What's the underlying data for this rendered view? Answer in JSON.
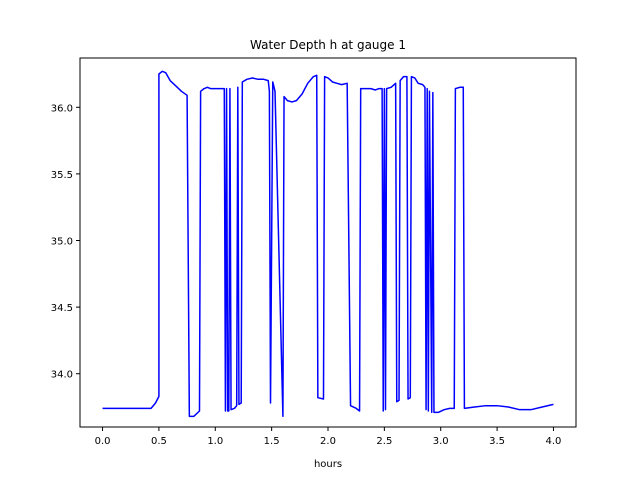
{
  "chart_data": {
    "type": "line",
    "title": "Water Depth h at gauge 1",
    "xlabel": "hours",
    "ylabel": "",
    "xlim": [
      -0.2,
      4.2
    ],
    "ylim": [
      33.6,
      36.37
    ],
    "xticks": [
      0.0,
      0.5,
      1.0,
      1.5,
      2.0,
      2.5,
      3.0,
      3.5,
      4.0
    ],
    "xtick_labels": [
      "0.0",
      "0.5",
      "1.0",
      "1.5",
      "2.0",
      "2.5",
      "3.0",
      "3.5",
      "4.0"
    ],
    "yticks": [
      34.0,
      34.5,
      35.0,
      35.5,
      36.0
    ],
    "ytick_labels": [
      "34.0",
      "34.5",
      "35.0",
      "35.5",
      "36.0"
    ],
    "grid": false,
    "legend": "none",
    "color": "#0000ff",
    "series": [
      {
        "points": [
          [
            0.0,
            33.74
          ],
          [
            0.2,
            33.74
          ],
          [
            0.4,
            33.74
          ],
          [
            0.43,
            33.74
          ],
          [
            0.47,
            33.78
          ],
          [
            0.5,
            33.83
          ],
          [
            0.5,
            36.25
          ],
          [
            0.53,
            36.27
          ],
          [
            0.56,
            36.26
          ],
          [
            0.6,
            36.2
          ],
          [
            0.65,
            36.16
          ],
          [
            0.7,
            36.12
          ],
          [
            0.75,
            36.09
          ],
          [
            0.77,
            33.68
          ],
          [
            0.81,
            33.68
          ],
          [
            0.86,
            33.72
          ],
          [
            0.87,
            36.12
          ],
          [
            0.9,
            36.14
          ],
          [
            0.93,
            36.15
          ],
          [
            0.96,
            36.14
          ],
          [
            1.0,
            36.14
          ],
          [
            1.03,
            36.14
          ],
          [
            1.08,
            36.14
          ],
          [
            1.09,
            33.72
          ],
          [
            1.1,
            36.14
          ],
          [
            1.11,
            33.72
          ],
          [
            1.12,
            33.72
          ],
          [
            1.13,
            36.14
          ],
          [
            1.14,
            33.73
          ],
          [
            1.17,
            33.74
          ],
          [
            1.19,
            33.76
          ],
          [
            1.2,
            36.15
          ],
          [
            1.21,
            33.77
          ],
          [
            1.23,
            33.78
          ],
          [
            1.24,
            36.19
          ],
          [
            1.28,
            36.21
          ],
          [
            1.33,
            36.22
          ],
          [
            1.38,
            36.21
          ],
          [
            1.43,
            36.21
          ],
          [
            1.47,
            36.2
          ],
          [
            1.48,
            36.12
          ],
          [
            1.49,
            33.78
          ],
          [
            1.51,
            36.19
          ],
          [
            1.53,
            36.12
          ],
          [
            1.6,
            33.68
          ],
          [
            1.61,
            36.08
          ],
          [
            1.64,
            36.05
          ],
          [
            1.68,
            36.04
          ],
          [
            1.72,
            36.05
          ],
          [
            1.77,
            36.1
          ],
          [
            1.82,
            36.18
          ],
          [
            1.87,
            36.23
          ],
          [
            1.9,
            36.24
          ],
          [
            1.91,
            33.82
          ],
          [
            1.96,
            33.81
          ],
          [
            1.97,
            36.23
          ],
          [
            2.0,
            36.22
          ],
          [
            2.04,
            36.19
          ],
          [
            2.08,
            36.18
          ],
          [
            2.12,
            36.17
          ],
          [
            2.17,
            36.18
          ],
          [
            2.2,
            33.76
          ],
          [
            2.25,
            33.74
          ],
          [
            2.28,
            33.72
          ],
          [
            2.29,
            36.14
          ],
          [
            2.33,
            36.14
          ],
          [
            2.38,
            36.14
          ],
          [
            2.42,
            36.13
          ],
          [
            2.45,
            36.14
          ],
          [
            2.48,
            36.14
          ],
          [
            2.49,
            33.72
          ],
          [
            2.5,
            36.14
          ],
          [
            2.51,
            33.73
          ],
          [
            2.52,
            36.14
          ],
          [
            2.56,
            36.15
          ],
          [
            2.6,
            36.18
          ],
          [
            2.61,
            33.79
          ],
          [
            2.63,
            33.8
          ],
          [
            2.64,
            36.2
          ],
          [
            2.67,
            36.23
          ],
          [
            2.7,
            36.23
          ],
          [
            2.71,
            33.81
          ],
          [
            2.73,
            33.82
          ],
          [
            2.74,
            36.23
          ],
          [
            2.77,
            36.22
          ],
          [
            2.8,
            36.18
          ],
          [
            2.84,
            36.17
          ],
          [
            2.86,
            36.15
          ],
          [
            2.87,
            33.73
          ],
          [
            2.88,
            36.14
          ],
          [
            2.89,
            33.72
          ],
          [
            2.9,
            36.12
          ],
          [
            2.92,
            33.71
          ],
          [
            2.93,
            36.11
          ],
          [
            2.94,
            33.71
          ],
          [
            2.98,
            33.71
          ],
          [
            3.03,
            33.73
          ],
          [
            3.08,
            33.74
          ],
          [
            3.12,
            33.74
          ],
          [
            3.13,
            36.14
          ],
          [
            3.17,
            36.15
          ],
          [
            3.2,
            36.15
          ],
          [
            3.21,
            33.74
          ],
          [
            3.3,
            33.75
          ],
          [
            3.4,
            33.76
          ],
          [
            3.5,
            33.76
          ],
          [
            3.6,
            33.75
          ],
          [
            3.7,
            33.73
          ],
          [
            3.8,
            33.73
          ],
          [
            3.9,
            33.75
          ],
          [
            4.0,
            33.77
          ]
        ]
      }
    ]
  }
}
